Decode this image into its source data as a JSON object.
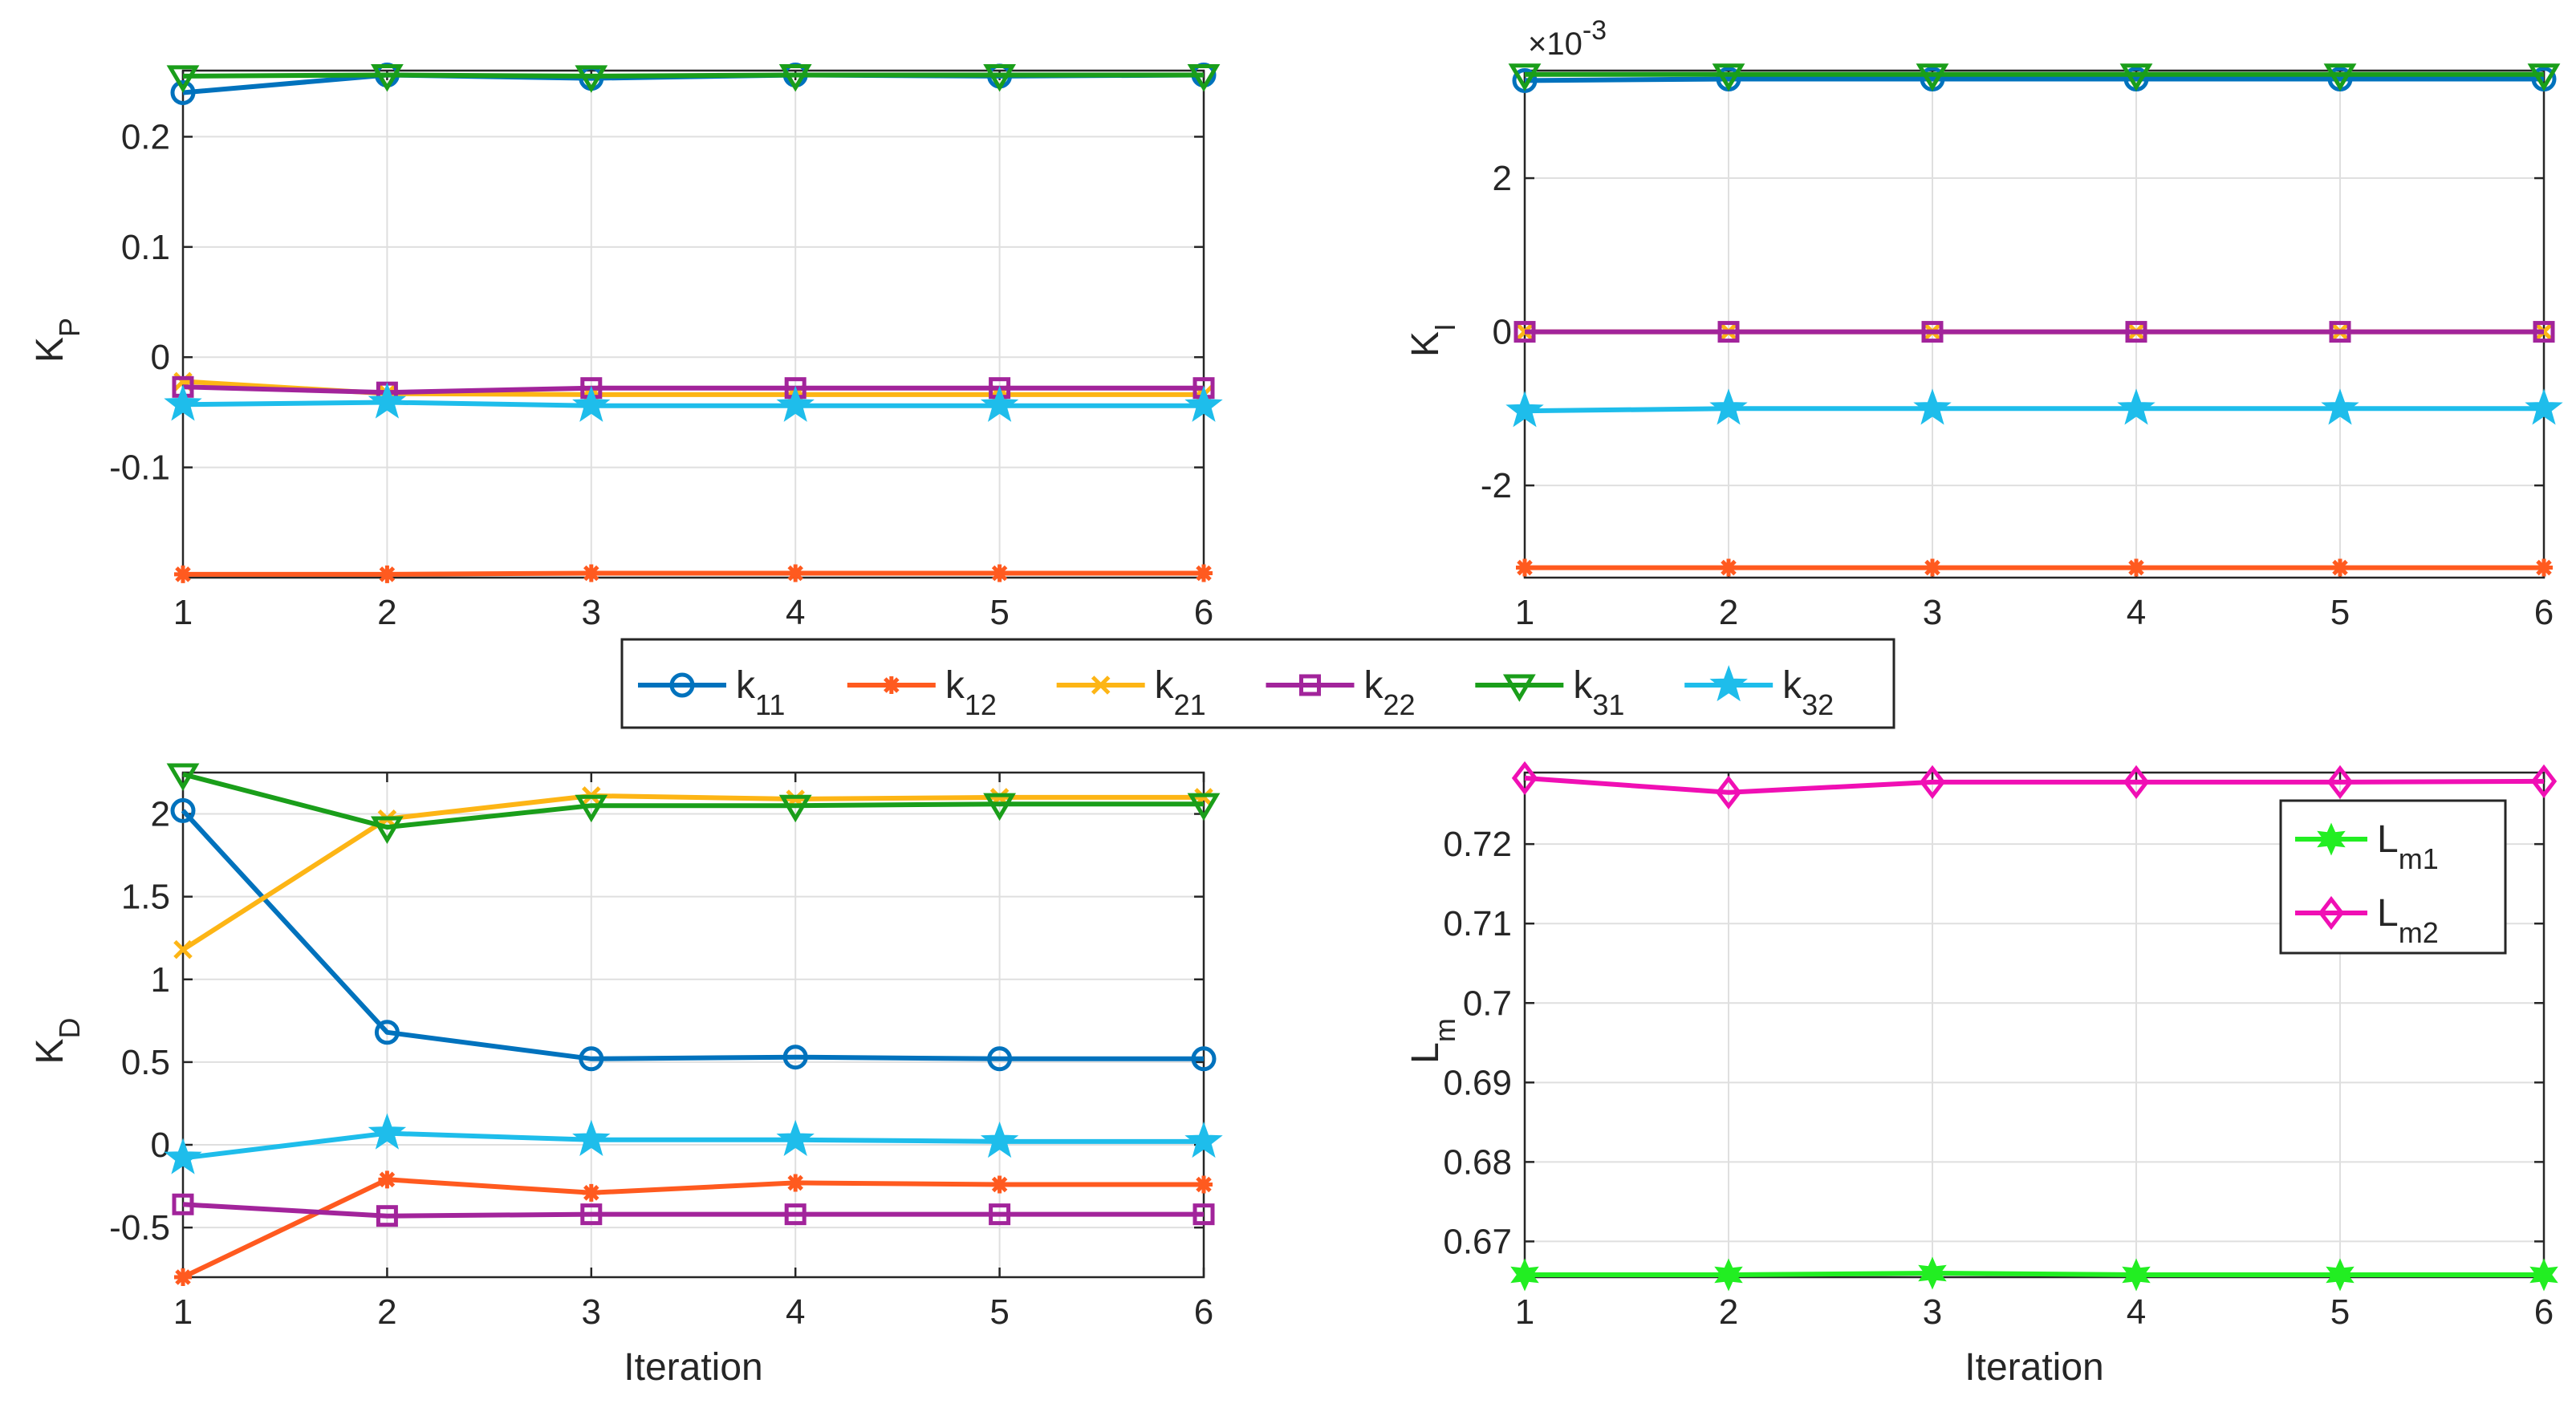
{
  "figure": {
    "legend": [
      {
        "key": "k11",
        "base": "k",
        "sub": "11",
        "color": "#0072BD",
        "marker": "circle"
      },
      {
        "key": "k12",
        "base": "k",
        "sub": "12",
        "color": "#FF5A1F",
        "marker": "asterisk"
      },
      {
        "key": "k21",
        "base": "k",
        "sub": "21",
        "color": "#FDB515",
        "marker": "x"
      },
      {
        "key": "k22",
        "base": "k",
        "sub": "22",
        "color": "#A2249B",
        "marker": "square"
      },
      {
        "key": "k31",
        "base": "k",
        "sub": "31",
        "color": "#1A9E1A",
        "marker": "triangle-down"
      },
      {
        "key": "k32",
        "base": "k",
        "sub": "32",
        "color": "#1EBDEB",
        "marker": "pentagram"
      }
    ]
  },
  "chart_data": [
    {
      "id": "kp",
      "type": "line",
      "ylabel": "K",
      "ylabel_sub": "P",
      "xlabel": "",
      "x": [
        1,
        2,
        3,
        4,
        5,
        6
      ],
      "xlim": [
        1,
        6
      ],
      "ylim": [
        -0.2,
        0.26
      ],
      "yticks": [
        -0.1,
        0,
        0.1,
        0.2
      ],
      "ytick_labels": [
        "-0.1",
        "0",
        "0.1",
        "0.2"
      ],
      "xtick_labels": [
        "1",
        "2",
        "3",
        "4",
        "5",
        "6"
      ],
      "grid": true,
      "series": [
        {
          "key": "k11",
          "values": [
            0.24,
            0.256,
            0.253,
            0.256,
            0.255,
            0.256
          ]
        },
        {
          "key": "k12",
          "values": [
            -0.197,
            -0.197,
            -0.196,
            -0.196,
            -0.196,
            -0.196
          ]
        },
        {
          "key": "k21",
          "values": [
            -0.022,
            -0.033,
            -0.034,
            -0.034,
            -0.034,
            -0.034
          ]
        },
        {
          "key": "k22",
          "values": [
            -0.027,
            -0.032,
            -0.028,
            -0.028,
            -0.028,
            -0.028
          ]
        },
        {
          "key": "k31",
          "values": [
            0.255,
            0.256,
            0.255,
            0.256,
            0.256,
            0.256
          ]
        },
        {
          "key": "k32",
          "values": [
            -0.043,
            -0.041,
            -0.044,
            -0.044,
            -0.044,
            -0.044
          ]
        }
      ]
    },
    {
      "id": "ki",
      "type": "line",
      "ylabel": "K",
      "ylabel_sub": "I",
      "xlabel": "",
      "exponent": "×10",
      "exponent_power": "-3",
      "x": [
        1,
        2,
        3,
        4,
        5,
        6
      ],
      "xlim": [
        1,
        6
      ],
      "ylim": [
        -3.2,
        3.4
      ],
      "yticks": [
        -2,
        0,
        2
      ],
      "ytick_labels": [
        "-2",
        "0",
        "2"
      ],
      "xtick_labels": [
        "1",
        "2",
        "3",
        "4",
        "5",
        "6"
      ],
      "grid": true,
      "series": [
        {
          "key": "k11",
          "values": [
            3.27,
            3.29,
            3.29,
            3.29,
            3.29,
            3.29
          ]
        },
        {
          "key": "k12",
          "values": [
            -3.07,
            -3.07,
            -3.07,
            -3.07,
            -3.07,
            -3.07
          ]
        },
        {
          "key": "k21",
          "values": [
            0,
            0,
            0,
            0,
            0,
            0
          ]
        },
        {
          "key": "k22",
          "values": [
            0,
            0,
            0,
            0,
            0,
            0
          ]
        },
        {
          "key": "k31",
          "values": [
            3.35,
            3.35,
            3.35,
            3.35,
            3.35,
            3.35
          ]
        },
        {
          "key": "k32",
          "values": [
            -1.03,
            -1.0,
            -1.0,
            -1.0,
            -1.0,
            -1.0
          ]
        }
      ]
    },
    {
      "id": "kd",
      "type": "line",
      "ylabel": "K",
      "ylabel_sub": "D",
      "xlabel": "Iteration",
      "x": [
        1,
        2,
        3,
        4,
        5,
        6
      ],
      "xlim": [
        1,
        6
      ],
      "ylim": [
        -0.8,
        2.25
      ],
      "yticks": [
        -0.5,
        0,
        0.5,
        1,
        1.5,
        2
      ],
      "ytick_labels": [
        "-0.5",
        "0",
        "0.5",
        "1",
        "1.5",
        "2"
      ],
      "xtick_labels": [
        "1",
        "2",
        "3",
        "4",
        "5",
        "6"
      ],
      "grid": true,
      "series": [
        {
          "key": "k11",
          "values": [
            2.02,
            0.68,
            0.52,
            0.53,
            0.52,
            0.52
          ]
        },
        {
          "key": "k12",
          "values": [
            -0.8,
            -0.21,
            -0.29,
            -0.23,
            -0.24,
            -0.24
          ]
        },
        {
          "key": "k21",
          "values": [
            1.18,
            1.97,
            2.11,
            2.09,
            2.1,
            2.1
          ]
        },
        {
          "key": "k22",
          "values": [
            -0.36,
            -0.43,
            -0.42,
            -0.42,
            -0.42,
            -0.42
          ]
        },
        {
          "key": "k31",
          "values": [
            2.24,
            1.92,
            2.05,
            2.05,
            2.06,
            2.06
          ]
        },
        {
          "key": "k32",
          "values": [
            -0.08,
            0.07,
            0.03,
            0.03,
            0.02,
            0.02
          ]
        }
      ]
    },
    {
      "id": "lm",
      "type": "line",
      "ylabel": "L",
      "ylabel_sub": "m",
      "xlabel": "Iteration",
      "x": [
        1,
        2,
        3,
        4,
        5,
        6
      ],
      "xlim": [
        1,
        6
      ],
      "ylim": [
        0.6655,
        0.729
      ],
      "yticks": [
        0.67,
        0.68,
        0.69,
        0.7,
        0.71,
        0.72
      ],
      "ytick_labels": [
        "0.67",
        "0.68",
        "0.69",
        "0.7",
        "0.71",
        "0.72"
      ],
      "xtick_labels": [
        "1",
        "2",
        "3",
        "4",
        "5",
        "6"
      ],
      "grid": true,
      "legend": [
        {
          "key": "Lm1",
          "base": "L",
          "sub": "m1",
          "color": "#22EE22",
          "marker": "hexagram"
        },
        {
          "key": "Lm2",
          "base": "L",
          "sub": "m2",
          "color": "#F00FB4",
          "marker": "diamond"
        }
      ],
      "legend_position": "top-right",
      "series": [
        {
          "key": "Lm1",
          "values": [
            0.6658,
            0.6658,
            0.666,
            0.6658,
            0.6658,
            0.6658
          ]
        },
        {
          "key": "Lm2",
          "values": [
            0.7283,
            0.7265,
            0.7278,
            0.7278,
            0.7278,
            0.7279
          ]
        }
      ]
    }
  ]
}
